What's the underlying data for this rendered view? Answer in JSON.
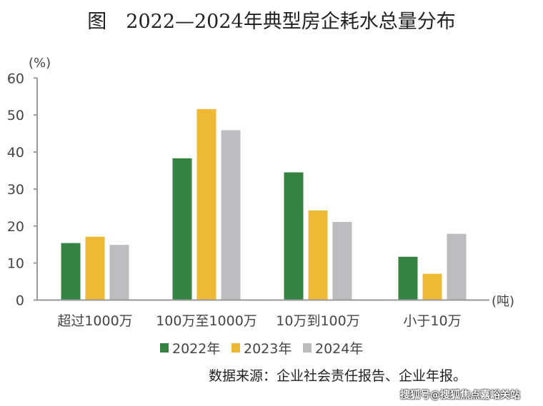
{
  "title": "图　2022—2024年典型房企耗水总量分布",
  "source": "数据来源：企业社会责任报告、企业年报。",
  "watermark": "搜狐号@搜狐焦点嘉峪关站",
  "chart_data": {
    "type": "bar",
    "title": "图　2022—2024年典型房企耗水总量分布",
    "ylabel": "(%)",
    "xlabel": "(吨)",
    "ylim": [
      0,
      60
    ],
    "yticks": [
      0,
      10,
      20,
      30,
      40,
      50,
      60
    ],
    "categories": [
      "超过1000万",
      "100万至1000万",
      "10万到100万",
      "小于10万"
    ],
    "series": [
      {
        "name": "2022年",
        "color": "#348341",
        "values": [
          15.4,
          38.3,
          34.5,
          11.7
        ]
      },
      {
        "name": "2023年",
        "color": "#EEB935",
        "values": [
          17.1,
          51.6,
          24.2,
          7.1
        ]
      },
      {
        "name": "2024年",
        "color": "#BDBDC0",
        "values": [
          14.9,
          45.9,
          21.1,
          17.9
        ]
      }
    ],
    "grid": false,
    "legend": "bottom"
  }
}
